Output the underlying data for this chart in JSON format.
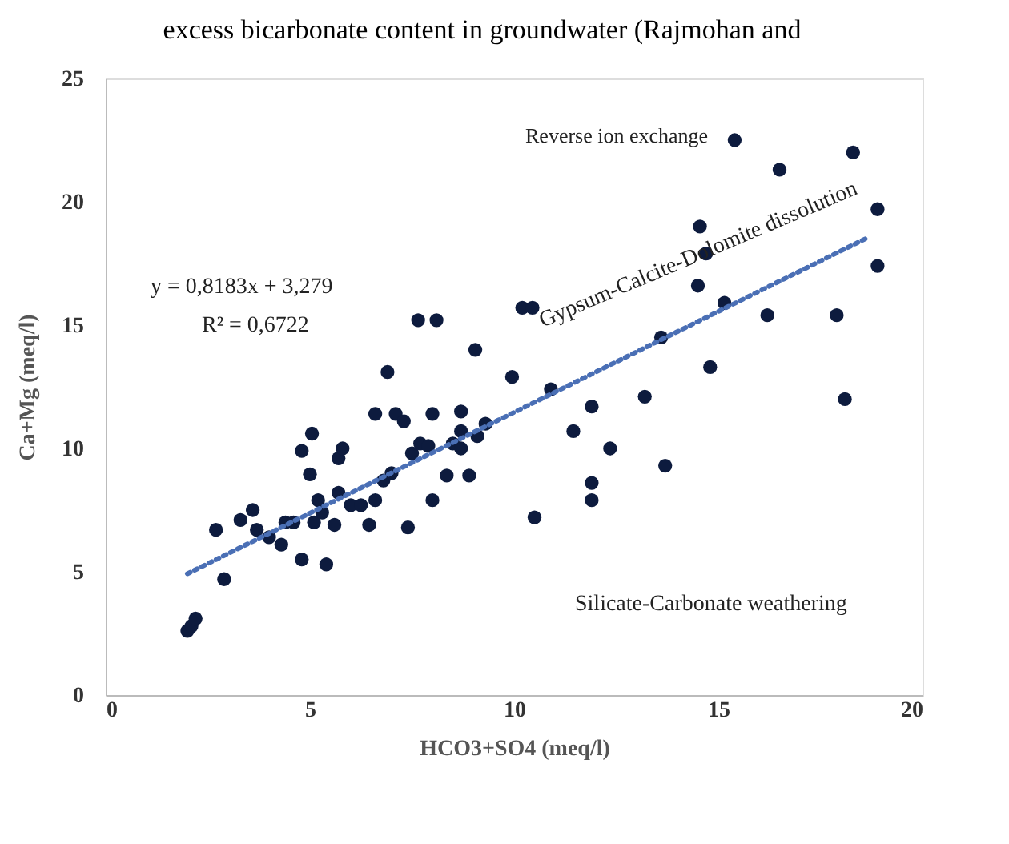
{
  "chart_data": {
    "type": "scatter",
    "xlabel": "HCO3+SO4 (meq/l)",
    "ylabel": "Ca+Mg (meq/l)",
    "xlim": [
      0,
      20
    ],
    "xticks": [
      0,
      5,
      10,
      15,
      20
    ],
    "ylim": [
      0,
      25
    ],
    "yticks": [
      0,
      5,
      10,
      15,
      20,
      25
    ],
    "marker": "circle",
    "series": [
      {
        "type": "scatter",
        "color": "#0d1b3e",
        "x": [
          2.0,
          2.1,
          2.2,
          2.9,
          2.7,
          3.3,
          3.6,
          3.7,
          4.0,
          4.3,
          4.4,
          4.6,
          4.8,
          4.8,
          5.05,
          5.0,
          5.2,
          5.1,
          5.3,
          5.4,
          5.6,
          5.7,
          5.7,
          5.8,
          6.0,
          6.25,
          6.45,
          6.6,
          6.6,
          6.8,
          6.9,
          7.0,
          7.1,
          7.3,
          7.4,
          7.5,
          7.65,
          7.7,
          7.9,
          8.1,
          8.0,
          8.0,
          8.35,
          8.5,
          8.7,
          8.7,
          8.7,
          8.9,
          9.05,
          9.1,
          9.3,
          9.95,
          10.2,
          10.45,
          10.5,
          10.9,
          11.45,
          11.9,
          11.9,
          11.9,
          12.35,
          13.2,
          13.6,
          13.7,
          14.5,
          14.55,
          14.7,
          14.8,
          15.15,
          15.4,
          16.2,
          16.5,
          17.9,
          18.1,
          18.3,
          18.9,
          18.9
        ],
        "values": [
          2.6,
          2.8,
          3.1,
          4.7,
          6.7,
          7.1,
          7.5,
          6.7,
          6.4,
          6.1,
          7.0,
          7.0,
          5.5,
          9.9,
          10.6,
          8.95,
          7.9,
          7.0,
          7.4,
          5.3,
          6.9,
          9.6,
          8.2,
          10.0,
          7.7,
          7.7,
          6.9,
          7.9,
          11.4,
          8.7,
          13.1,
          9.0,
          11.4,
          11.1,
          6.8,
          9.8,
          15.2,
          10.2,
          10.1,
          15.2,
          11.4,
          7.9,
          8.9,
          10.2,
          11.5,
          10.7,
          10.0,
          8.9,
          14.0,
          10.5,
          11.0,
          12.9,
          15.7,
          15.7,
          7.2,
          12.4,
          10.7,
          11.7,
          8.6,
          7.9,
          10.0,
          12.1,
          14.5,
          9.3,
          16.6,
          19.0,
          17.9,
          13.3,
          15.9,
          22.5,
          15.4,
          21.3,
          15.4,
          12.0,
          22.0,
          19.7,
          17.4
        ]
      },
      {
        "type": "line",
        "color": "#4a6fb5",
        "line_style": "dotted",
        "marker": "none",
        "x": [
          2.0,
          18.7
        ],
        "values": [
          4.92,
          18.58
        ]
      }
    ],
    "annotations": [
      "excess bicarbonate content in groundwater (Rajmohan and",
      "y = 0,8183x + 3,279",
      "R² = 0,6722",
      "Reverse ion exchange",
      "Gypsum-Calcite-Dolomite dissolution",
      "Silicate-Carbonate weathering"
    ]
  }
}
